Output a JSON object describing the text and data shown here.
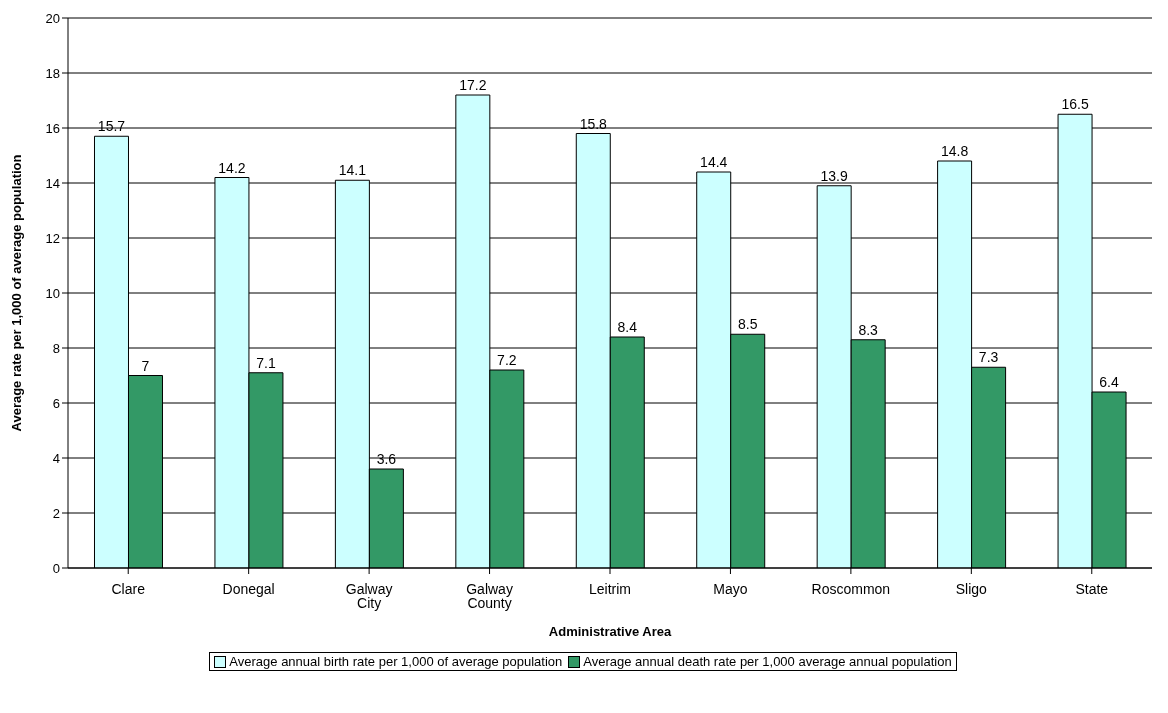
{
  "chart_data": {
    "type": "bar",
    "xlabel": "Administrative Area",
    "ylabel": "Average rate per 1,000 of average population",
    "categories": [
      "Clare",
      "Donegal",
      "Galway City",
      "Galway County",
      "Leitrim",
      "Mayo",
      "Roscommon",
      "Sligo",
      "State"
    ],
    "series": [
      {
        "name": "Average annual birth rate per 1,000 of average population",
        "color": "#ccffff",
        "values": [
          15.7,
          14.2,
          14.1,
          17.2,
          15.8,
          14.4,
          13.9,
          14.8,
          16.5
        ]
      },
      {
        "name": "Average annual death rate per 1,000 average annual population",
        "color": "#339966",
        "values": [
          7,
          7.1,
          3.6,
          7.2,
          8.4,
          8.5,
          8.3,
          7.3,
          6.4
        ]
      }
    ],
    "ylim": [
      0,
      20
    ],
    "yticks": [
      0,
      2,
      4,
      6,
      8,
      10,
      12,
      14,
      16,
      18,
      20
    ],
    "grid": "y",
    "legend": "bottom",
    "data_labels": true
  }
}
